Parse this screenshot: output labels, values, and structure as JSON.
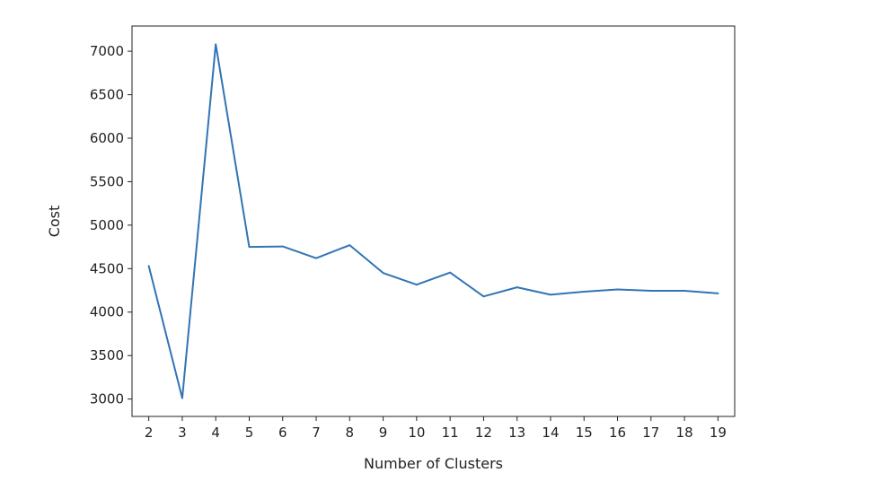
{
  "chart_data": {
    "type": "line",
    "title": "",
    "xlabel": "Number of Clusters",
    "ylabel": "Cost",
    "x": [
      2,
      3,
      4,
      5,
      6,
      7,
      8,
      9,
      10,
      11,
      12,
      13,
      14,
      15,
      16,
      17,
      18,
      19
    ],
    "series": [
      {
        "color": "#3274b5",
        "values": [
          4530,
          3010,
          7080,
          4750,
          4755,
          4620,
          4770,
          4450,
          4315,
          4455,
          4180,
          4285,
          4200,
          4235,
          4260,
          4245,
          4245,
          4215
        ]
      }
    ],
    "xticks": [
      2,
      3,
      4,
      5,
      6,
      7,
      8,
      9,
      10,
      11,
      12,
      13,
      14,
      15,
      16,
      17,
      18,
      19
    ],
    "yticks": [
      3000,
      3500,
      4000,
      4500,
      5000,
      5500,
      6000,
      6500,
      7000
    ],
    "xlim": [
      1.5,
      19.5
    ],
    "ylim": [
      2800,
      7290
    ],
    "grid": false,
    "legend": "none"
  }
}
